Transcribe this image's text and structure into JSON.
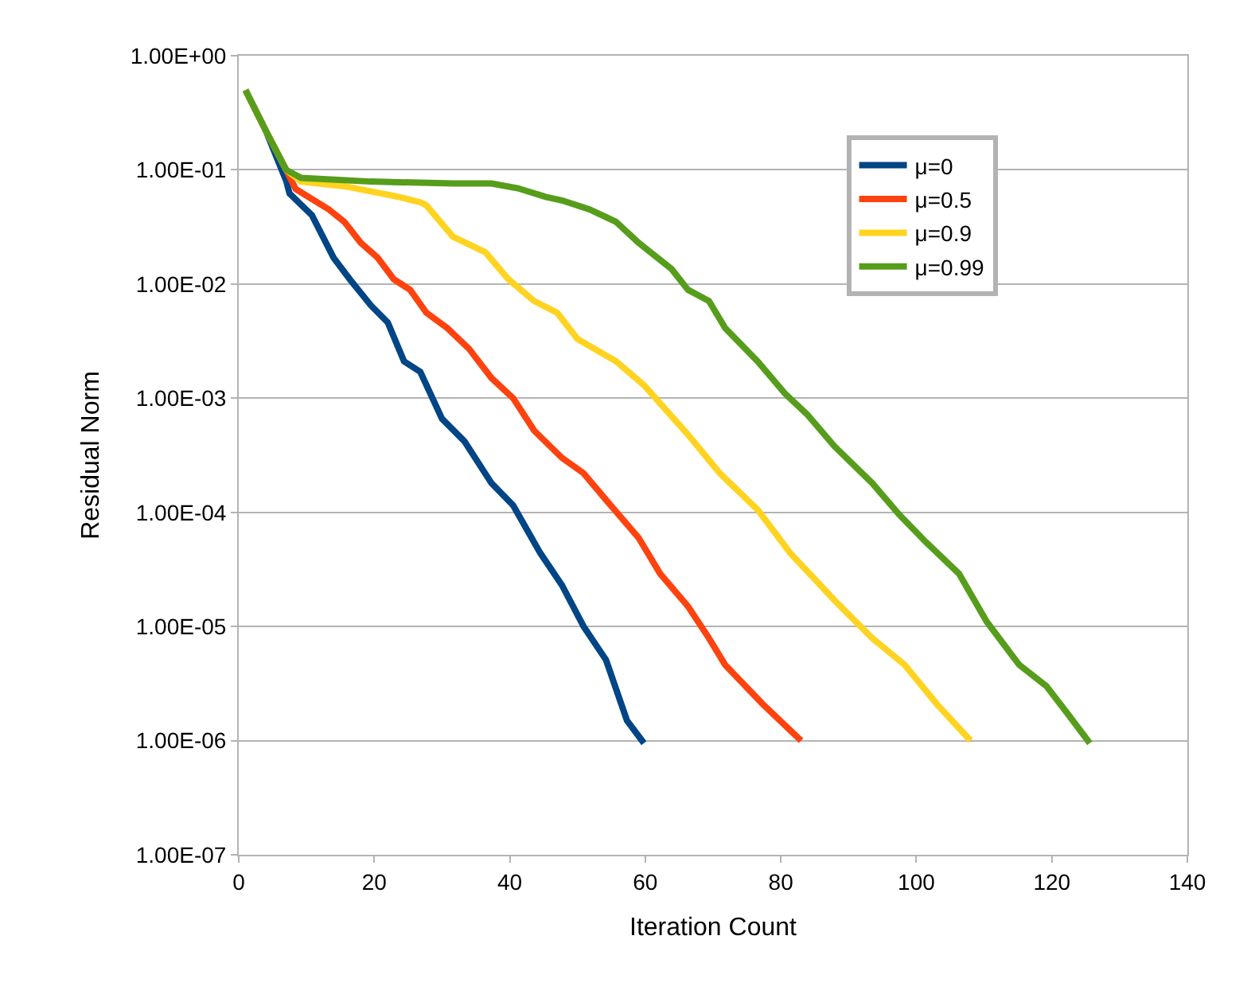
{
  "chart_data": {
    "type": "line",
    "xlabel": "Iteration Count",
    "ylabel": "Residual Norm",
    "log": "y",
    "grid": "y",
    "legend": "top right",
    "marker": "none",
    "line_style": "solid",
    "xlim": [
      0,
      140
    ],
    "xticks": [
      0,
      20,
      40,
      60,
      80,
      100,
      120,
      140
    ],
    "ylim": [
      1e-07,
      1
    ],
    "yticks": [
      {
        "value": 1,
        "label": "1.00E+00"
      },
      {
        "value": 0.1,
        "label": "1.00E-01"
      },
      {
        "value": 0.01,
        "label": "1.00E-02"
      },
      {
        "value": 0.001,
        "label": "1.00E-03"
      },
      {
        "value": 0.0001,
        "label": "1.00E-04"
      },
      {
        "value": 1e-05,
        "label": "1.00E-05"
      },
      {
        "value": 1e-06,
        "label": "1.00E-06"
      },
      {
        "value": 1e-07,
        "label": "1.00E-07"
      }
    ],
    "series": [
      {
        "name": "μ=0",
        "color": "#004586",
        "x": [
          1,
          4,
          7,
          7.5,
          10.8,
          14,
          16.4,
          19.5,
          22,
          24.4,
          26.8,
          30,
          33.3,
          37.3,
          40.5,
          44.5,
          47.7,
          50.9,
          54.2,
          57.3,
          59.8
        ],
        "values": [
          0.5,
          0.22,
          0.08,
          0.062,
          0.04,
          0.017,
          0.011,
          0.0065,
          0.0046,
          0.0021,
          0.0017,
          0.00066,
          0.00042,
          0.00018,
          0.000115,
          4.4e-05,
          2.3e-05,
          1e-05,
          5.1e-06,
          1.5e-06,
          9.5e-07
        ]
      },
      {
        "name": "μ=0.5",
        "color": "#ff420e",
        "x": [
          1,
          4,
          7,
          8.4,
          13.3,
          15.6,
          18,
          20.5,
          22.9,
          25.3,
          27.7,
          30.8,
          34,
          37.3,
          40.5,
          43.6,
          47.7,
          50.9,
          54.9,
          59,
          62.2,
          66.3,
          69.4,
          71.8,
          77.3,
          83
        ],
        "values": [
          0.5,
          0.22,
          0.1,
          0.068,
          0.045,
          0.035,
          0.023,
          0.017,
          0.011,
          0.0089,
          0.0056,
          0.0041,
          0.0027,
          0.0015,
          0.001,
          0.00052,
          0.0003,
          0.00022,
          0.000115,
          6e-05,
          2.9e-05,
          1.5e-05,
          7.9e-06,
          4.6e-06,
          2.1e-06,
          1e-06
        ]
      },
      {
        "name": "μ=0.9",
        "color": "#ffd320",
        "x": [
          1,
          4,
          7,
          9.2,
          15.6,
          20.5,
          23.6,
          26.8,
          27.7,
          31.6,
          36.4,
          39.8,
          43.6,
          47,
          50,
          55.7,
          59.8,
          66.3,
          71,
          76.6,
          81.4,
          87.9,
          93.5,
          98.3,
          103,
          108
        ],
        "values": [
          0.5,
          0.22,
          0.1,
          0.079,
          0.072,
          0.063,
          0.058,
          0.052,
          0.049,
          0.026,
          0.019,
          0.011,
          0.0071,
          0.0056,
          0.0033,
          0.0021,
          0.0013,
          0.00048,
          0.00022,
          0.000105,
          4.4e-05,
          1.7e-05,
          7.9e-06,
          4.6e-06,
          2.1e-06,
          1e-06
        ]
      },
      {
        "name": "μ=0.99",
        "color": "#579d1c",
        "x": [
          1,
          4,
          7,
          9.2,
          19.5,
          31.6,
          37.3,
          41.2,
          45.3,
          47.7,
          51.8,
          55.7,
          59,
          63.9,
          66.3,
          69.4,
          71.8,
          76.6,
          80.6,
          83.9,
          87.9,
          93.5,
          97.5,
          101.4,
          106.3,
          110.4,
          115.2,
          119.2,
          122.4,
          125.6
        ],
        "values": [
          0.5,
          0.22,
          0.1,
          0.085,
          0.079,
          0.076,
          0.076,
          0.069,
          0.058,
          0.054,
          0.045,
          0.035,
          0.023,
          0.0135,
          0.0089,
          0.0071,
          0.0041,
          0.0021,
          0.0011,
          0.00072,
          0.00038,
          0.00018,
          9.5e-05,
          5.5e-05,
          2.9e-05,
          1.1e-05,
          4.6e-06,
          3e-06,
          1.7e-06,
          9.5e-07
        ]
      }
    ]
  }
}
